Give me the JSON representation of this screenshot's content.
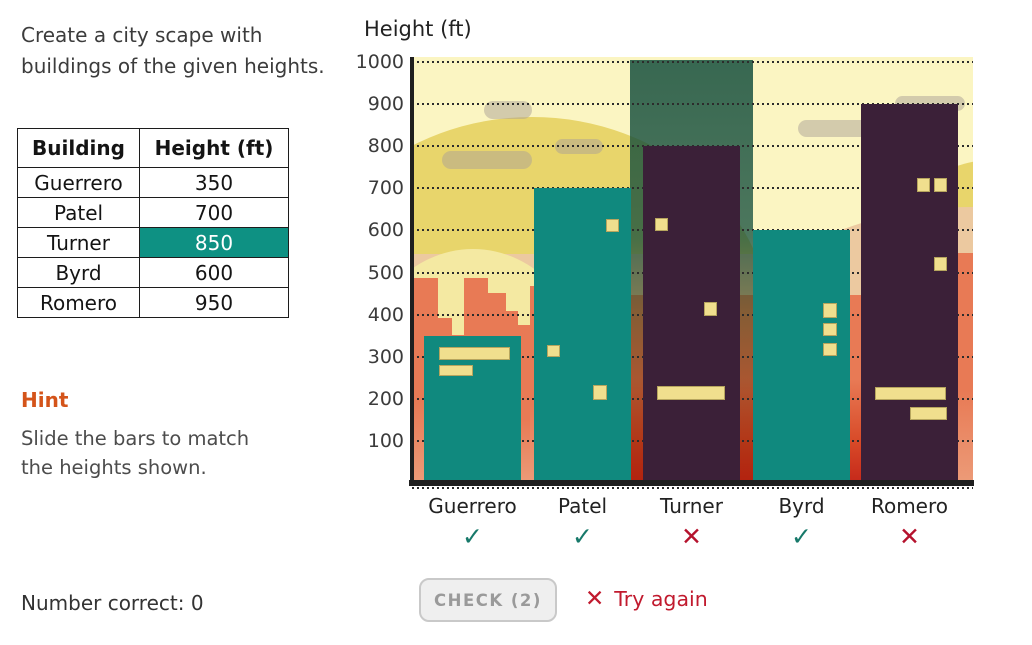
{
  "prompt": "Create a city scape with\nbuildings of the given heights.",
  "table": {
    "headers": [
      "Building",
      "Height (ft)"
    ],
    "rows": [
      {
        "building": "Guerrero",
        "height": "350",
        "highlighted": false
      },
      {
        "building": "Patel",
        "height": "700",
        "highlighted": false
      },
      {
        "building": "Turner",
        "height": "850",
        "highlighted": true
      },
      {
        "building": "Byrd",
        "height": "600",
        "highlighted": false
      },
      {
        "building": "Romero",
        "height": "950",
        "highlighted": false
      }
    ]
  },
  "hint": {
    "title": "Hint",
    "body": "Slide the bars to match\nthe heights shown."
  },
  "status": {
    "score_label": "Number correct: 0"
  },
  "controls": {
    "check_label": "CHECK (2)",
    "feedback": "Try again"
  },
  "marks": {
    "correct": "✓",
    "incorrect": "✕"
  },
  "chart": {
    "title": "Height (ft)",
    "y_ticks": [
      1000,
      900,
      800,
      700,
      600,
      500,
      400,
      300,
      200,
      100
    ],
    "bars": [
      {
        "label": "Guerrero",
        "value_ft": 350,
        "color": "teal",
        "correct": true,
        "selected": false,
        "windows": [
          {
            "x": 15,
            "w": 71,
            "top_ft": 322,
            "h_ft": 30
          },
          {
            "x": 15,
            "w": 34,
            "top_ft": 281,
            "h_ft": 28
          }
        ]
      },
      {
        "label": "Patel",
        "value_ft": 700,
        "color": "teal",
        "correct": true,
        "selected": false,
        "windows": [
          {
            "x": 72,
            "w": 13,
            "top_ft": 626,
            "h_ft": 30
          },
          {
            "x": 13,
            "w": 13,
            "top_ft": 327,
            "h_ft": 27
          },
          {
            "x": 59,
            "w": 14,
            "top_ft": 232,
            "h_ft": 36
          }
        ]
      },
      {
        "label": "Turner",
        "value_ft": 800,
        "color": "purple",
        "correct": false,
        "selected": true,
        "windows": [
          {
            "x": 12,
            "w": 13,
            "top_ft": 630,
            "h_ft": 32
          },
          {
            "x": 61,
            "w": 13,
            "top_ft": 429,
            "h_ft": 33
          },
          {
            "x": 14,
            "w": 68,
            "top_ft": 230,
            "h_ft": 33
          }
        ]
      },
      {
        "label": "Byrd",
        "value_ft": 600,
        "color": "teal",
        "correct": true,
        "selected": false,
        "windows": [
          {
            "x": 70,
            "w": 14,
            "top_ft": 427,
            "h_ft": 34
          },
          {
            "x": 70,
            "w": 14,
            "top_ft": 381,
            "h_ft": 33
          },
          {
            "x": 70,
            "w": 14,
            "top_ft": 332,
            "h_ft": 31
          }
        ]
      },
      {
        "label": "Romero",
        "value_ft": 900,
        "color": "purple",
        "correct": false,
        "selected": false,
        "windows": [
          {
            "x": 56,
            "w": 13,
            "top_ft": 725,
            "h_ft": 33
          },
          {
            "x": 73,
            "w": 13,
            "top_ft": 725,
            "h_ft": 33
          },
          {
            "x": 73,
            "w": 13,
            "top_ft": 536,
            "h_ft": 33
          },
          {
            "x": 14,
            "w": 71,
            "top_ft": 227,
            "h_ft": 31
          },
          {
            "x": 49,
            "w": 37,
            "top_ft": 180,
            "h_ft": 31
          }
        ]
      }
    ]
  },
  "chart_data": {
    "type": "bar",
    "title": "Height (ft)",
    "categories": [
      "Guerrero",
      "Patel",
      "Turner",
      "Byrd",
      "Romero"
    ],
    "series": [
      {
        "name": "current_bar_height_ft",
        "values": [
          350,
          700,
          800,
          600,
          900
        ]
      },
      {
        "name": "target_height_ft",
        "values": [
          350,
          700,
          850,
          600,
          950
        ]
      }
    ],
    "correct_flags": [
      true,
      true,
      false,
      true,
      false
    ],
    "ylabel": "Height (ft)",
    "ylim": [
      0,
      1000
    ],
    "grid": "dotted horizontal every 100"
  },
  "colors": {
    "teal_bar": "#10897E",
    "purple_bar": "#3B2038",
    "window": "#F0DF8E",
    "table_highlight": "#0E9183",
    "hint_orange": "#D4541A",
    "error_red": "#B5122D",
    "check_teal": "#17796A",
    "feedback_red": "#C11A2E",
    "sky": "#FBF5C2",
    "hill": "#E8D56B",
    "sand": "#ECC9A0",
    "building_orange": "#E87A55"
  }
}
